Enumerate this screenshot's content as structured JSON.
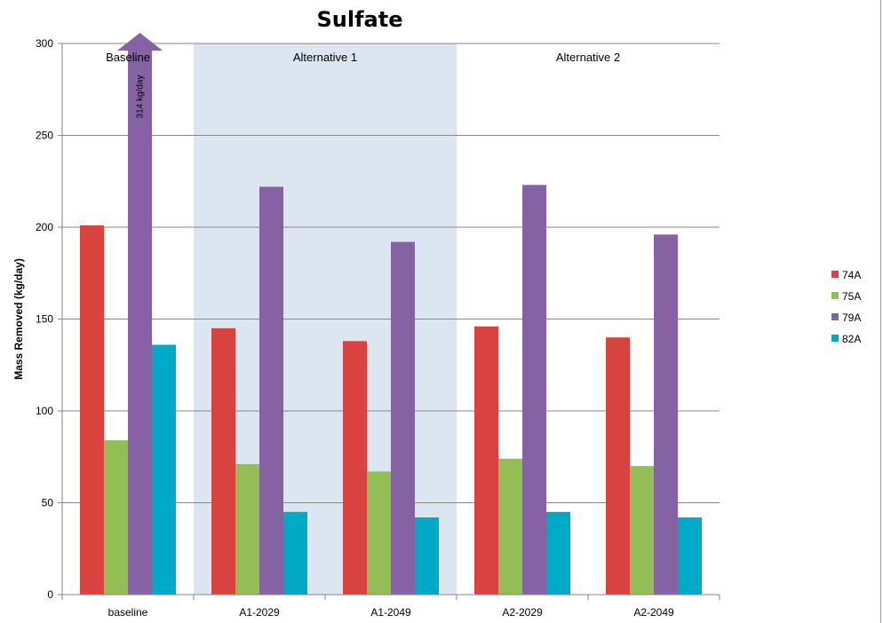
{
  "chart_data": {
    "type": "bar",
    "title": "Sulfate",
    "ylabel": "Mass Removed (kg/day)",
    "xlabel": "",
    "ylim": [
      0,
      300
    ],
    "yticks": [
      0,
      50,
      100,
      150,
      200,
      250,
      300
    ],
    "grid": true,
    "legend_position": "right",
    "categories": [
      "baseline",
      "A1-2029",
      "A1-2049",
      "A2-2029",
      "A2-2049"
    ],
    "series": [
      {
        "name": "74A",
        "color": "#d9433f",
        "values": [
          201,
          145,
          138,
          146,
          140
        ]
      },
      {
        "name": "75A",
        "color": "#93bd55",
        "values": [
          84,
          71,
          67,
          74,
          70
        ]
      },
      {
        "name": "79A",
        "color": "#8562a3",
        "values": [
          314,
          222,
          192,
          223,
          196
        ]
      },
      {
        "name": "82A",
        "color": "#00a9c6",
        "values": [
          136,
          45,
          42,
          45,
          42
        ]
      }
    ],
    "regions": [
      {
        "label": "Baseline",
        "categories": [
          "baseline"
        ],
        "shaded": false
      },
      {
        "label": "Alternative 1",
        "categories": [
          "A1-2029",
          "A1-2049"
        ],
        "shaded": true,
        "color": "#dce6f1"
      },
      {
        "label": "Alternative 2",
        "categories": [
          "A2-2029",
          "A2-2049"
        ],
        "shaded": false
      }
    ],
    "annotations": [
      {
        "text": "314 kg/day",
        "category": "baseline",
        "series": "79A",
        "note": "bar exceeds axis maximum, drawn as arrow"
      }
    ]
  }
}
